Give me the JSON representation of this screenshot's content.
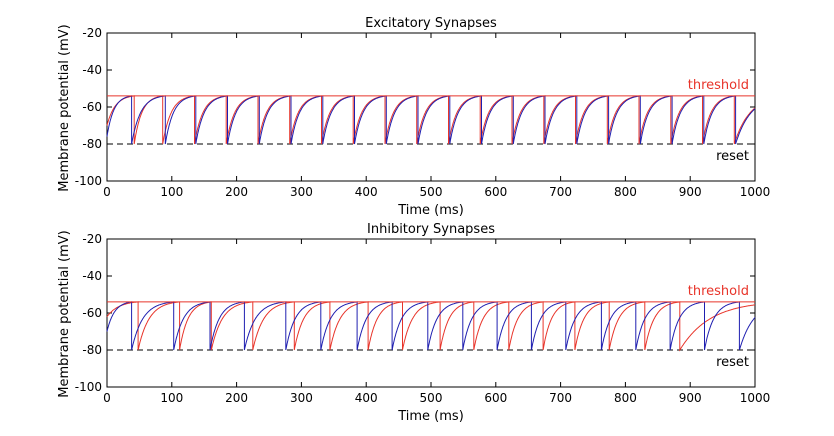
{
  "chart_data": [
    {
      "type": "line",
      "title": "Excitatory Synapses",
      "xlabel": "Time (ms)",
      "ylabel": "Membrane potential (mV)",
      "xlim": [
        0,
        1000
      ],
      "ylim": [
        -100,
        -20
      ],
      "xticks": [
        "0",
        "100",
        "200",
        "300",
        "400",
        "500",
        "600",
        "700",
        "800",
        "900",
        "1000"
      ],
      "yticks": [
        "-20",
        "-40",
        "-60",
        "-80",
        "-100"
      ],
      "threshold": {
        "label": "threshold",
        "value": -54,
        "color": "#e8342a"
      },
      "reset": {
        "label": "reset",
        "value": -80,
        "color": "#000000"
      },
      "series": [
        {
          "color": "#e8342a",
          "v0": -70,
          "tau": 20,
          "spike_times": [
            42,
            86,
            135,
            184,
            233,
            282,
            331,
            380,
            429,
            478,
            527,
            576,
            625,
            674,
            723,
            772,
            821,
            870,
            919,
            968
          ]
        },
        {
          "color": "#1f1fb0",
          "v0": -76,
          "tau": 20,
          "spike_times": [
            38,
            90,
            137,
            186,
            235,
            284,
            333,
            382,
            431,
            480,
            529,
            578,
            627,
            676,
            725,
            774,
            823,
            872,
            921,
            970
          ]
        }
      ]
    },
    {
      "type": "line",
      "title": "Inhibitory Synapses",
      "xlabel": "Time (ms)",
      "ylabel": "Membrane potential (mV)",
      "xlim": [
        0,
        1000
      ],
      "ylim": [
        -100,
        -20
      ],
      "xticks": [
        "0",
        "100",
        "200",
        "300",
        "400",
        "500",
        "600",
        "700",
        "800",
        "900",
        "1000"
      ],
      "yticks": [
        "-20",
        "-40",
        "-60",
        "-80",
        "-100"
      ],
      "threshold": {
        "label": "threshold",
        "value": -54,
        "color": "#e8342a"
      },
      "reset": {
        "label": "reset",
        "value": -80,
        "color": "#000000"
      },
      "series": [
        {
          "color": "#e8342a",
          "v0": -62,
          "tau": 20,
          "spike_times": [
            48,
            112,
            161,
            225,
            289,
            344,
            403,
            456,
            514,
            566,
            620,
            673,
            722,
            775,
            830,
            884
          ]
        },
        {
          "color": "#1f1fb0",
          "v0": -70,
          "tau": 20,
          "spike_times": [
            38,
            103,
            159,
            212,
            276,
            330,
            386,
            440,
            495,
            549,
            602,
            655,
            708,
            763,
            816,
            869,
            922,
            976
          ]
        }
      ]
    }
  ]
}
